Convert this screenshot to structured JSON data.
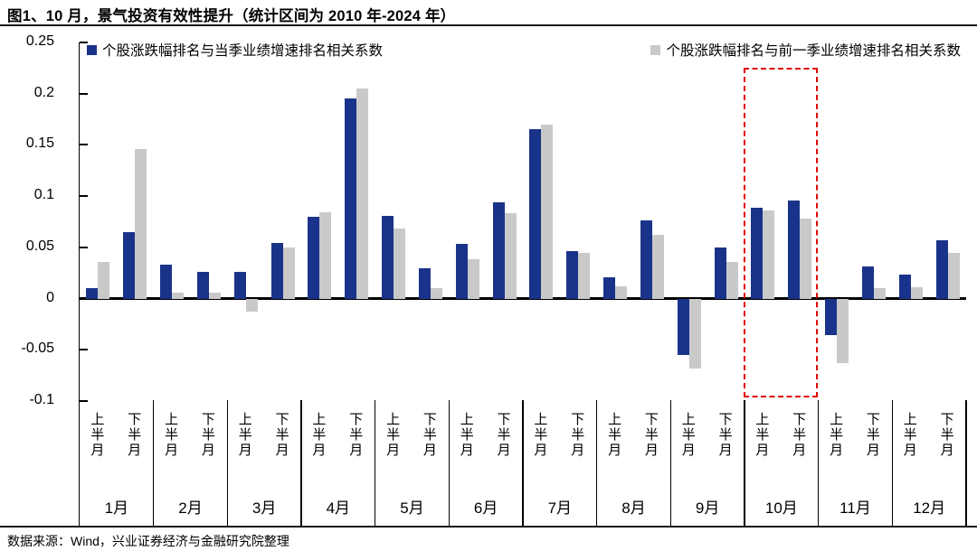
{
  "title": "图1、10 月，景气投资有效性提升（统计区间为 2010 年-2024 年）",
  "footer": "数据来源：Wind，兴业证券经济与金融研究院整理",
  "colors": {
    "current": "#1a338a",
    "previous": "#c9c9c9",
    "highlight": "#e00000",
    "axis": "#000000"
  },
  "legend": {
    "items": [
      {
        "label": "个股涨跌幅排名与当季业绩增速排名相关系数",
        "color": "#1a338a"
      },
      {
        "label": "个股涨跌幅排名与前一季业绩增速排名相关系数",
        "color": "#c9c9c9"
      }
    ]
  },
  "chart_data": {
    "type": "bar",
    "title": "图1、10 月，景气投资有效性提升（统计区间为 2010 年-2024 年）",
    "months": [
      "1月",
      "2月",
      "3月",
      "4月",
      "5月",
      "6月",
      "7月",
      "8月",
      "9月",
      "10月",
      "11月",
      "12月"
    ],
    "half_labels": [
      "上半月",
      "下半月"
    ],
    "series": [
      {
        "name": "个股涨跌幅排名与当季业绩增速排名相关系数",
        "color": "#1a338a",
        "values": [
          0.01,
          0.065,
          0.033,
          0.026,
          0.026,
          0.054,
          0.08,
          0.195,
          0.081,
          0.03,
          0.053,
          0.094,
          0.165,
          0.046,
          0.021,
          0.076,
          -0.055,
          0.05,
          0.089,
          0.096,
          -0.036,
          0.031,
          0.023,
          0.057
        ]
      },
      {
        "name": "个股涨跌幅排名与前一季业绩增速排名相关系数",
        "color": "#c9c9c9",
        "values": [
          0.036,
          0.146,
          0.006,
          0.006,
          -0.013,
          0.05,
          0.084,
          0.205,
          0.068,
          0.01,
          0.038,
          0.083,
          0.17,
          0.045,
          0.012,
          0.062,
          -0.068,
          0.036,
          0.086,
          0.078,
          -0.063,
          0.01,
          0.011,
          0.045
        ]
      }
    ],
    "yticks": [
      0.25,
      0.2,
      0.15,
      0.1,
      0.05,
      0,
      -0.05,
      -0.1
    ],
    "ylim": [
      -0.1,
      0.25
    ],
    "grid": false,
    "legend_position": "top",
    "highlight": {
      "month": "10月",
      "month_index": 9,
      "style": "red-dashed-box"
    }
  }
}
